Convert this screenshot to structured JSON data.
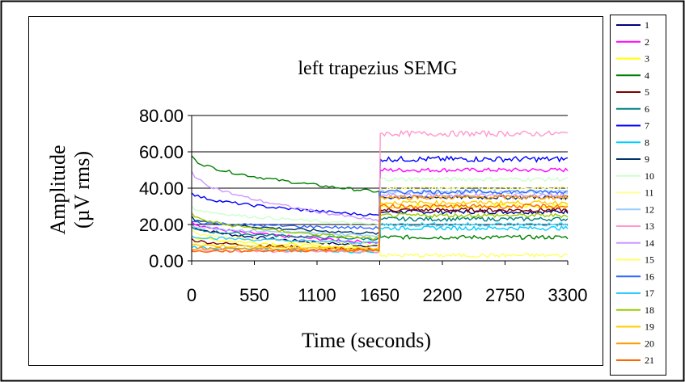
{
  "chart_data": {
    "type": "line",
    "title": "left trapezius SEMG",
    "ylabel_line1": "Amplitude",
    "ylabel_line2": "(µV rms)",
    "xlabel": "Time (seconds)",
    "xlim": [
      0,
      3300
    ],
    "ylim": [
      0,
      80
    ],
    "x_ticks": [
      "0",
      "550",
      "1100",
      "1650",
      "2200",
      "2750",
      "3300"
    ],
    "y_ticks": [
      "0.00",
      "20.00",
      "40.00",
      "60.00",
      "80.00"
    ],
    "grid": "horizontal",
    "legend_position": "right",
    "series": [
      {
        "name": "1",
        "color": "#000080",
        "before": [
          20,
          8
        ],
        "after": 27
      },
      {
        "name": "2",
        "color": "#ff00ff",
        "before": [
          22,
          10
        ],
        "after": 50
      },
      {
        "name": "3",
        "color": "#ffff00",
        "before": [
          14,
          7
        ],
        "after": 30
      },
      {
        "name": "4",
        "color": "#008000",
        "before": [
          58,
          38
        ],
        "after": 13
      },
      {
        "name": "5",
        "color": "#800000",
        "before": [
          12,
          6
        ],
        "after": 28
      },
      {
        "name": "6",
        "color": "#008080",
        "before": [
          18,
          12
        ],
        "after": 23
      },
      {
        "name": "7",
        "color": "#0000ff",
        "before": [
          38,
          25
        ],
        "after": 56
      },
      {
        "name": "8",
        "color": "#00ccff",
        "before": [
          8,
          5
        ],
        "after": 18
      },
      {
        "name": "9",
        "color": "#003366",
        "before": [
          24,
          15
        ],
        "after": 35
      },
      {
        "name": "10",
        "color": "#ccffcc",
        "before": [
          30,
          20
        ],
        "after": 45
      },
      {
        "name": "11",
        "color": "#ffff99",
        "before": [
          10,
          6
        ],
        "after": 40
      },
      {
        "name": "12",
        "color": "#99ccff",
        "before": [
          20,
          14
        ],
        "after": 38
      },
      {
        "name": "13",
        "color": "#ff99cc",
        "before": [
          6,
          5
        ],
        "after": 70
      },
      {
        "name": "14",
        "color": "#cc99ff",
        "before": [
          50,
          22
        ],
        "after": 36
      },
      {
        "name": "15",
        "color": "#ffff66",
        "before": [
          16,
          9
        ],
        "after": 3
      },
      {
        "name": "16",
        "color": "#3366ff",
        "before": [
          22,
          18
        ],
        "after": 38
      },
      {
        "name": "17",
        "color": "#33ccff",
        "before": [
          14,
          10
        ],
        "after": 20
      },
      {
        "name": "18",
        "color": "#99cc00",
        "before": [
          26,
          12
        ],
        "after": 25
      },
      {
        "name": "19",
        "color": "#ffcc00",
        "before": [
          9,
          7
        ],
        "after": 32
      },
      {
        "name": "20",
        "color": "#ff9900",
        "before": [
          7,
          6
        ],
        "after": 35
      },
      {
        "name": "21",
        "color": "#ff6600",
        "before": [
          5,
          6
        ],
        "after": 30
      }
    ]
  }
}
